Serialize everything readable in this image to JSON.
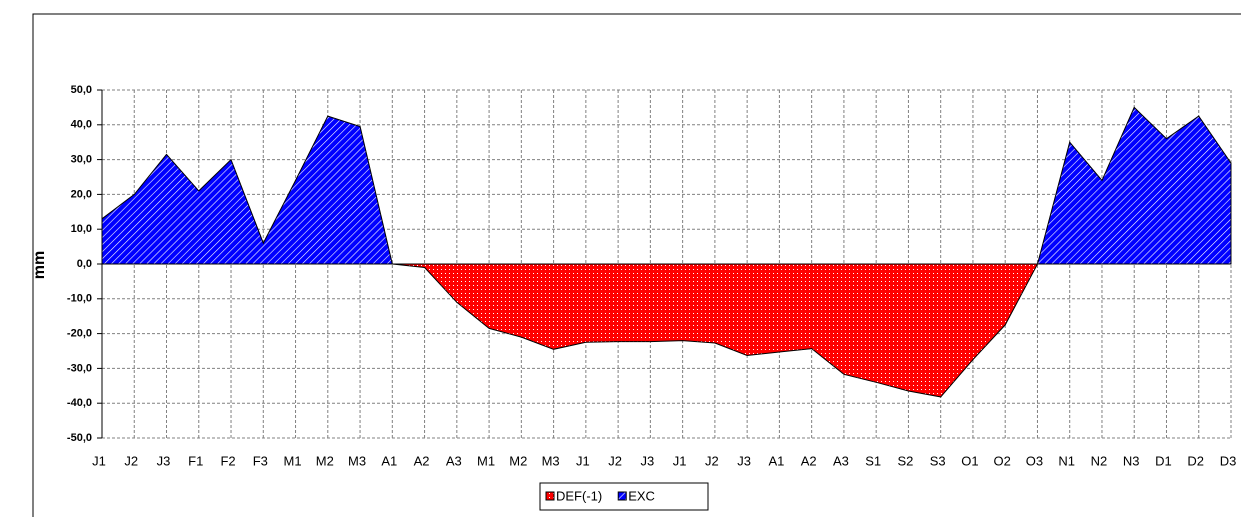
{
  "chart_data": {
    "type": "area",
    "y_label": "mm",
    "categories": [
      "J1",
      "J2",
      "J3",
      "F1",
      "F2",
      "F3",
      "M1",
      "M2",
      "M3",
      "A1",
      "A2",
      "A3",
      "M1",
      "M2",
      "M3",
      "J1",
      "J2",
      "J3",
      "J1",
      "J2",
      "J3",
      "A1",
      "A2",
      "A3",
      "S1",
      "S2",
      "S3",
      "O1",
      "O2",
      "O3",
      "N1",
      "N2",
      "N3",
      "D1",
      "D2",
      "D3"
    ],
    "series": [
      {
        "name": "DEF(-1)",
        "color": "#ff0000",
        "values": [
          0,
          0,
          0,
          0,
          0,
          0,
          0,
          0,
          0,
          0,
          -1,
          -11,
          -18.5,
          -21,
          -24.5,
          -22.5,
          -22.3,
          -22.3,
          -22,
          -22.7,
          -26.3,
          -25.3,
          -24.3,
          -31.7,
          -34,
          -36.5,
          -38.2,
          -27.5,
          -17.5,
          0,
          0,
          0,
          0,
          0,
          0,
          0
        ]
      },
      {
        "name": "EXC",
        "color": "#0000ff",
        "values": [
          13,
          20,
          31.5,
          21,
          30,
          6,
          24,
          42.5,
          39.5,
          0,
          0,
          0,
          0,
          0,
          0,
          0,
          0,
          0,
          0,
          0,
          0,
          0,
          0,
          0,
          0,
          0,
          0,
          0,
          0,
          0,
          35,
          24,
          45,
          36,
          42.5,
          29
        ]
      }
    ],
    "ylim": [
      -50,
      50
    ],
    "yticks": [
      {
        "value": -50,
        "label": "-50,0"
      },
      {
        "value": -40,
        "label": "-40,0"
      },
      {
        "value": -30,
        "label": "-30,0"
      },
      {
        "value": -20,
        "label": "-20,0"
      },
      {
        "value": -10,
        "label": "-10,0"
      },
      {
        "value": 0,
        "label": "0,0"
      },
      {
        "value": 10,
        "label": "10,0"
      },
      {
        "value": 20,
        "label": "20,0"
      },
      {
        "value": 30,
        "label": "30,0"
      },
      {
        "value": 40,
        "label": "40,0"
      },
      {
        "value": 50,
        "label": "50,0"
      }
    ],
    "grid": true,
    "legend": "bottom"
  }
}
